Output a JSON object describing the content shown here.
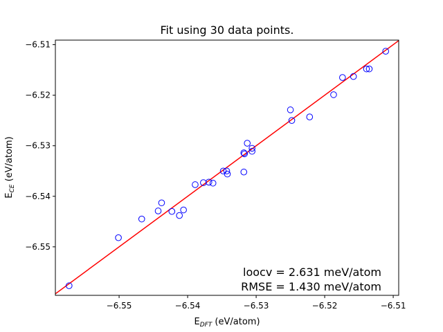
{
  "chart_data": {
    "type": "scatter",
    "title": "Fit using 30 data points.",
    "xlabel": {
      "main": "E",
      "sub": "DFT",
      "unit": " (eV/atom)"
    },
    "ylabel": {
      "main": "E",
      "sub": "CE",
      "unit": " (eV/atom)"
    },
    "xlim": [
      -6.5593,
      -6.5092
    ],
    "ylim": [
      -6.5596,
      -6.5091
    ],
    "xticks": [
      -6.55,
      -6.54,
      -6.53,
      -6.52,
      -6.51
    ],
    "xtick_labels": [
      "−6.55",
      "−6.54",
      "−6.53",
      "−6.52",
      "−6.51"
    ],
    "yticks": [
      -6.55,
      -6.54,
      -6.53,
      -6.52,
      -6.51
    ],
    "ytick_labels": [
      "−6.55",
      "−6.54",
      "−6.53",
      "−6.52",
      "−6.51"
    ],
    "grid": false,
    "reference_line": {
      "from": [
        -6.5593,
        -6.5593
      ],
      "to": [
        -6.5092,
        -6.5092
      ],
      "color": "#ff0000"
    },
    "marker_color": "#0000ff",
    "points": [
      {
        "x": -6.5573,
        "y": -6.5577
      },
      {
        "x": -6.5501,
        "y": -6.5482
      },
      {
        "x": -6.5467,
        "y": -6.5445
      },
      {
        "x": -6.5443,
        "y": -6.5429
      },
      {
        "x": -6.5438,
        "y": -6.5413
      },
      {
        "x": -6.5423,
        "y": -6.543
      },
      {
        "x": -6.5412,
        "y": -6.5438
      },
      {
        "x": -6.5406,
        "y": -6.5427
      },
      {
        "x": -6.5389,
        "y": -6.5377
      },
      {
        "x": -6.5377,
        "y": -6.5373
      },
      {
        "x": -6.5369,
        "y": -6.5372
      },
      {
        "x": -6.5363,
        "y": -6.5374
      },
      {
        "x": -6.5348,
        "y": -6.535
      },
      {
        "x": -6.5343,
        "y": -6.535
      },
      {
        "x": -6.5342,
        "y": -6.5356
      },
      {
        "x": -6.5318,
        "y": -6.5352
      },
      {
        "x": -6.5318,
        "y": -6.5314
      },
      {
        "x": -6.5317,
        "y": -6.5316
      },
      {
        "x": -6.5313,
        "y": -6.5295
      },
      {
        "x": -6.5306,
        "y": -6.5305
      },
      {
        "x": -6.5306,
        "y": -6.5311
      },
      {
        "x": -6.525,
        "y": -6.5229
      },
      {
        "x": -6.5248,
        "y": -6.525
      },
      {
        "x": -6.5222,
        "y": -6.5243
      },
      {
        "x": -6.5187,
        "y": -6.5199
      },
      {
        "x": -6.5174,
        "y": -6.5165
      },
      {
        "x": -6.5158,
        "y": -6.5163
      },
      {
        "x": -6.5139,
        "y": -6.5148
      },
      {
        "x": -6.5135,
        "y": -6.5148
      },
      {
        "x": -6.5111,
        "y": -6.5113
      }
    ],
    "annotations": [
      "loocv = 2.631 meV/atom",
      "RMSE = 1.430 meV/atom"
    ]
  }
}
